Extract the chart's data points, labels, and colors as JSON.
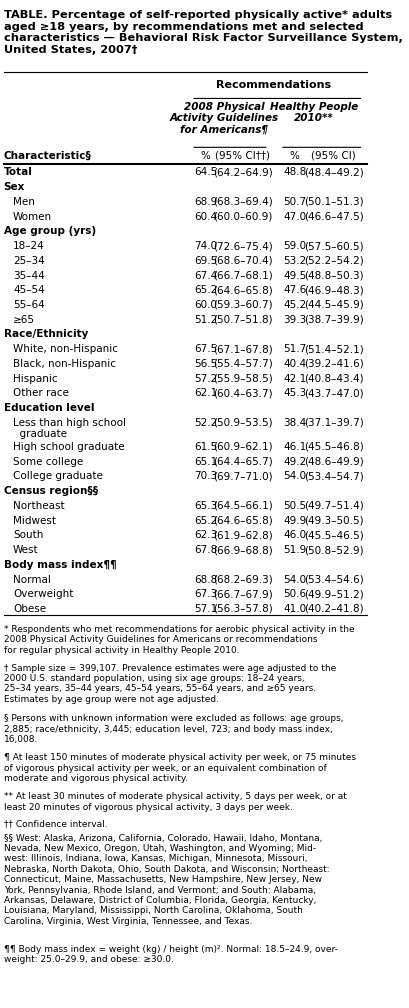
{
  "title": "TABLE. Percentage of self-reported physically active* adults aged ≥18 years, by recommendations met and selected characteristics — Behavioral Risk Factor Surveillance System, United States, 2007†",
  "col_header_row1": [
    "",
    "Recommendations",
    ""
  ],
  "col_header_row2_left": "2008 Physical Activity Guidelines for Americans¶",
  "col_header_row2_right": "Healthy People 2010**",
  "col_header_row3": [
    "Characteristic§",
    "%",
    "(95% CI††)",
    "%",
    "(95% CI)"
  ],
  "rows": [
    {
      "label": "Total",
      "bold": true,
      "indent": 0,
      "pct1": "64.5",
      "ci1": "(64.2–64.9)",
      "pct2": "48.8",
      "ci2": "(48.4–49.2)"
    },
    {
      "label": "Sex",
      "bold": true,
      "indent": 0,
      "pct1": "",
      "ci1": "",
      "pct2": "",
      "ci2": ""
    },
    {
      "label": "Men",
      "bold": false,
      "indent": 1,
      "pct1": "68.9",
      "ci1": "(68.3–69.4)",
      "pct2": "50.7",
      "ci2": "(50.1–51.3)"
    },
    {
      "label": "Women",
      "bold": false,
      "indent": 1,
      "pct1": "60.4",
      "ci1": "(60.0–60.9)",
      "pct2": "47.0",
      "ci2": "(46.6–47.5)"
    },
    {
      "label": "Age group (yrs)",
      "bold": true,
      "indent": 0,
      "pct1": "",
      "ci1": "",
      "pct2": "",
      "ci2": ""
    },
    {
      "label": "18–24",
      "bold": false,
      "indent": 1,
      "pct1": "74.0",
      "ci1": "(72.6–75.4)",
      "pct2": "59.0",
      "ci2": "(57.5–60.5)"
    },
    {
      "label": "25–34",
      "bold": false,
      "indent": 1,
      "pct1": "69.5",
      "ci1": "(68.6–70.4)",
      "pct2": "53.2",
      "ci2": "(52.2–54.2)"
    },
    {
      "label": "35–44",
      "bold": false,
      "indent": 1,
      "pct1": "67.4",
      "ci1": "(66.7–68.1)",
      "pct2": "49.5",
      "ci2": "(48.8–50.3)"
    },
    {
      "label": "45–54",
      "bold": false,
      "indent": 1,
      "pct1": "65.2",
      "ci1": "(64.6–65.8)",
      "pct2": "47.6",
      "ci2": "(46.9–48.3)"
    },
    {
      "label": "55–64",
      "bold": false,
      "indent": 1,
      "pct1": "60.0",
      "ci1": "(59.3–60.7)",
      "pct2": "45.2",
      "ci2": "(44.5–45.9)"
    },
    {
      "label": "≥65",
      "bold": false,
      "indent": 1,
      "underline_label": true,
      "pct1": "51.2",
      "ci1": "(50.7–51.8)",
      "pct2": "39.3",
      "ci2": "(38.7–39.9)"
    },
    {
      "label": "Race/Ethnicity",
      "bold": true,
      "indent": 0,
      "pct1": "",
      "ci1": "",
      "pct2": "",
      "ci2": ""
    },
    {
      "label": "White, non-Hispanic",
      "bold": false,
      "indent": 1,
      "pct1": "67.5",
      "ci1": "(67.1–67.8)",
      "pct2": "51.7",
      "ci2": "(51.4–52.1)"
    },
    {
      "label": "Black, non-Hispanic",
      "bold": false,
      "indent": 1,
      "pct1": "56.5",
      "ci1": "(55.4–57.7)",
      "pct2": "40.4",
      "ci2": "(39.2–41.6)"
    },
    {
      "label": "Hispanic",
      "bold": false,
      "indent": 1,
      "pct1": "57.2",
      "ci1": "(55.9–58.5)",
      "pct2": "42.1",
      "ci2": "(40.8–43.4)"
    },
    {
      "label": "Other race",
      "bold": false,
      "indent": 1,
      "pct1": "62.1",
      "ci1": "(60.4–63.7)",
      "pct2": "45.3",
      "ci2": "(43.7–47.0)"
    },
    {
      "label": "Education level",
      "bold": true,
      "indent": 0,
      "pct1": "",
      "ci1": "",
      "pct2": "",
      "ci2": ""
    },
    {
      "label": "Less than high school\n  graduate",
      "bold": false,
      "indent": 1,
      "pct1": "52.2",
      "ci1": "(50.9–53.5)",
      "pct2": "38.4",
      "ci2": "(37.1–39.7)"
    },
    {
      "label": "High school graduate",
      "bold": false,
      "indent": 1,
      "pct1": "61.5",
      "ci1": "(60.9–62.1)",
      "pct2": "46.1",
      "ci2": "(45.5–46.8)"
    },
    {
      "label": "Some college",
      "bold": false,
      "indent": 1,
      "pct1": "65.1",
      "ci1": "(64.4–65.7)",
      "pct2": "49.2",
      "ci2": "(48.6–49.9)"
    },
    {
      "label": "College graduate",
      "bold": false,
      "indent": 1,
      "pct1": "70.3",
      "ci1": "(69.7–71.0)",
      "pct2": "54.0",
      "ci2": "(53.4–54.7)"
    },
    {
      "label": "Census region§§",
      "bold": true,
      "indent": 0,
      "pct1": "",
      "ci1": "",
      "pct2": "",
      "ci2": ""
    },
    {
      "label": "Northeast",
      "bold": false,
      "indent": 1,
      "pct1": "65.3",
      "ci1": "(64.5–66.1)",
      "pct2": "50.5",
      "ci2": "(49.7–51.4)"
    },
    {
      "label": "Midwest",
      "bold": false,
      "indent": 1,
      "pct1": "65.2",
      "ci1": "(64.6–65.8)",
      "pct2": "49.9",
      "ci2": "(49.3–50.5)"
    },
    {
      "label": "South",
      "bold": false,
      "indent": 1,
      "pct1": "62.3",
      "ci1": "(61.9–62.8)",
      "pct2": "46.0",
      "ci2": "(45.5–46.5)"
    },
    {
      "label": "West",
      "bold": false,
      "indent": 1,
      "pct1": "67.8",
      "ci1": "(66.9–68.8)",
      "pct2": "51.9",
      "ci2": "(50.8–52.9)"
    },
    {
      "label": "Body mass index¶¶",
      "bold": true,
      "indent": 0,
      "pct1": "",
      "ci1": "",
      "pct2": "",
      "ci2": ""
    },
    {
      "label": "Normal",
      "bold": false,
      "indent": 1,
      "pct1": "68.8",
      "ci1": "(68.2–69.3)",
      "pct2": "54.0",
      "ci2": "(53.4–54.6)"
    },
    {
      "label": "Overweight",
      "bold": false,
      "indent": 1,
      "pct1": "67.3",
      "ci1": "(66.7–67.9)",
      "pct2": "50.6",
      "ci2": "(49.9–51.2)"
    },
    {
      "label": "Obese",
      "bold": false,
      "indent": 1,
      "pct1": "57.1",
      "ci1": "(56.3–57.8)",
      "pct2": "41.0",
      "ci2": "(40.2–41.8)"
    }
  ],
  "footnotes": [
    "* Respondents who met recommendations for aerobic physical activity in the\n2008 Physical Activity Guidelines for Americans or recommendations\nfor regular physical activity in Healthy People 2010.",
    "† Sample size = 399,107. Prevalence estimates were age adjusted to the\n2000 U.S. standard population, using six age groups: 18–24 years,\n25–34 years, 35–44 years, 45–54 years, 55–64 years, and ≥65 years.\nEstimates by age group were not age adjusted.",
    "§ Persons with unknown information were excluded as follows: age groups,\n2,885; race/ethnicity, 3,445; education level, 723; and body mass index,\n16,008.",
    "¶ At least 150 minutes of moderate physical activity per week, or 75 minutes\nof vigorous physical activity per week, or an equivalent combination of\nmoderate and vigorous physical activity.",
    "** At least 30 minutes of moderate physical activity, 5 days per week, or at\nleast 20 minutes of vigorous physical activity, 3 days per week.",
    "†† Confidence interval.",
    "§§ West: Alaska, Arizona, California, Colorado, Hawaii, Idaho, Montana,\nNevada, New Mexico, Oregon, Utah, Washington, and Wyoming; Mid-\nwest: Illinois, Indiana, Iowa, Kansas, Michigan, Minnesota, Missouri,\nNebraska, North Dakota, Ohio, South Dakota, and Wisconsin; Northeast:\nConnecticut, Maine, Massachusetts, New Hampshire, New Jersey, New\nYork, Pennsylvania, Rhode Island, and Vermont; and South: Alabama,\nArkansas, Delaware, District of Columbia, Florida, Georgia, Kentucky,\nLouisiana, Maryland, Mississippi, North Carolina, Oklahoma, South\nCarolina, Virginia, West Virginia, Tennessee, and Texas.",
    "¶¶ Body mass index = weight (kg) / height (m)². Normal: 18.5–24.9, over-\nweight: 25.0–29.9, and obese: ≥30.0."
  ],
  "bg_color": "#ffffff",
  "text_color": "#000000",
  "font_size": 7.5,
  "header_font_size": 8.0
}
